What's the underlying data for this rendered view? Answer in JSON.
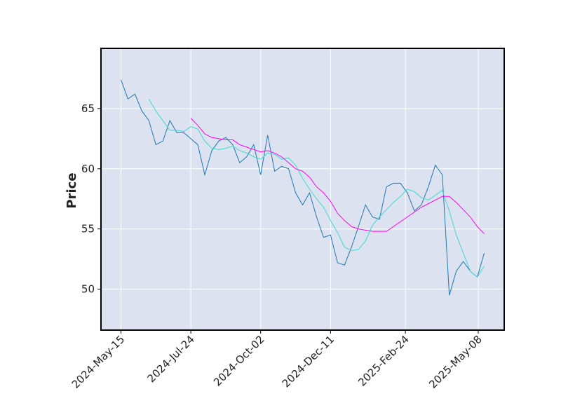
{
  "chart_data": {
    "type": "line",
    "y_label": "Price",
    "x": [
      "2024-05-15",
      "2024-05-22",
      "2024-05-29",
      "2024-06-05",
      "2024-06-12",
      "2024-06-19",
      "2024-06-26",
      "2024-07-03",
      "2024-07-10",
      "2024-07-17",
      "2024-07-24",
      "2024-07-31",
      "2024-08-07",
      "2024-08-14",
      "2024-08-21",
      "2024-08-28",
      "2024-09-04",
      "2024-09-11",
      "2024-09-18",
      "2024-09-25",
      "2024-10-02",
      "2024-10-09",
      "2024-10-16",
      "2024-10-23",
      "2024-10-30",
      "2024-11-06",
      "2024-11-13",
      "2024-11-20",
      "2024-11-27",
      "2024-12-04",
      "2024-12-11",
      "2024-12-18",
      "2024-12-25",
      "2025-01-01",
      "2025-01-08",
      "2025-01-15",
      "2025-01-22",
      "2025-01-29",
      "2025-02-05",
      "2025-02-12",
      "2025-02-19",
      "2025-02-26",
      "2025-03-05",
      "2025-03-12",
      "2025-03-19",
      "2025-03-26",
      "2025-04-02",
      "2025-04-09",
      "2025-04-16",
      "2025-04-23",
      "2025-04-30",
      "2025-05-07",
      "2025-05-14"
    ],
    "series": [
      {
        "color": "#1f77b4",
        "values": [
          67.4,
          65.8,
          66.2,
          64.8,
          64.0,
          62.0,
          62.3,
          64.0,
          63.0,
          63.0,
          62.5,
          62.0,
          59.5,
          61.5,
          62.3,
          62.6,
          62.0,
          60.5,
          61.0,
          62.0,
          59.5,
          62.8,
          59.8,
          60.2,
          60.0,
          58.0,
          57.0,
          58.0,
          56.0,
          54.3,
          54.5,
          52.2,
          52.0,
          53.5,
          55.2,
          57.0,
          56.0,
          55.8,
          58.5,
          58.8,
          58.8,
          58.0,
          56.5,
          57.0,
          58.5,
          60.3,
          59.5,
          49.5,
          51.5,
          52.3,
          51.5,
          51.0,
          53.0
        ]
      },
      {
        "color": "#40d8d0",
        "values": [
          null,
          null,
          null,
          null,
          65.8,
          64.8,
          64.0,
          63.2,
          63.2,
          63.1,
          63.5,
          63.3,
          62.3,
          61.7,
          61.6,
          61.7,
          61.9,
          61.5,
          61.3,
          61.0,
          60.8,
          61.3,
          61.2,
          60.8,
          60.9,
          60.3,
          59.2,
          58.3,
          57.5,
          56.8,
          55.7,
          54.7,
          53.5,
          53.2,
          53.3,
          54.0,
          55.3,
          56.0,
          56.6,
          57.2,
          57.7,
          58.3,
          58.1,
          57.6,
          57.4,
          57.8,
          58.2,
          56.5,
          54.5,
          53.0,
          51.5,
          51.0,
          51.9
        ]
      },
      {
        "color": "#ff00ff",
        "values": [
          null,
          null,
          null,
          null,
          null,
          null,
          null,
          null,
          null,
          null,
          64.2,
          63.6,
          62.9,
          62.6,
          62.5,
          62.4,
          62.4,
          62.0,
          61.8,
          61.6,
          61.4,
          61.5,
          61.3,
          61.0,
          60.5,
          60.0,
          59.8,
          59.3,
          58.5,
          58.0,
          57.3,
          56.3,
          55.7,
          55.2,
          55.0,
          54.9,
          54.8,
          54.8,
          54.8,
          55.2,
          55.6,
          56.0,
          56.4,
          56.8,
          57.1,
          57.4,
          57.7,
          57.7,
          57.2,
          56.6,
          56.0,
          55.2,
          54.6
        ]
      }
    ],
    "xlim": [
      "2024-04-25",
      "2025-06-03"
    ],
    "xticks": [
      {
        "value": "2024-05-15",
        "label": "2024-May-15"
      },
      {
        "value": "2024-07-24",
        "label": "2024-Jul-24"
      },
      {
        "value": "2024-10-02",
        "label": "2024-Oct-02"
      },
      {
        "value": "2024-12-11",
        "label": "2024-Dec-11"
      },
      {
        "value": "2025-02-24",
        "label": "2025-Feb-24"
      },
      {
        "value": "2025-05-08",
        "label": "2025-May-08"
      }
    ],
    "ylim": [
      46.6,
      70.0
    ],
    "yticks": [
      50,
      55,
      60,
      65
    ],
    "grid": true,
    "background": "#dce2ef"
  }
}
